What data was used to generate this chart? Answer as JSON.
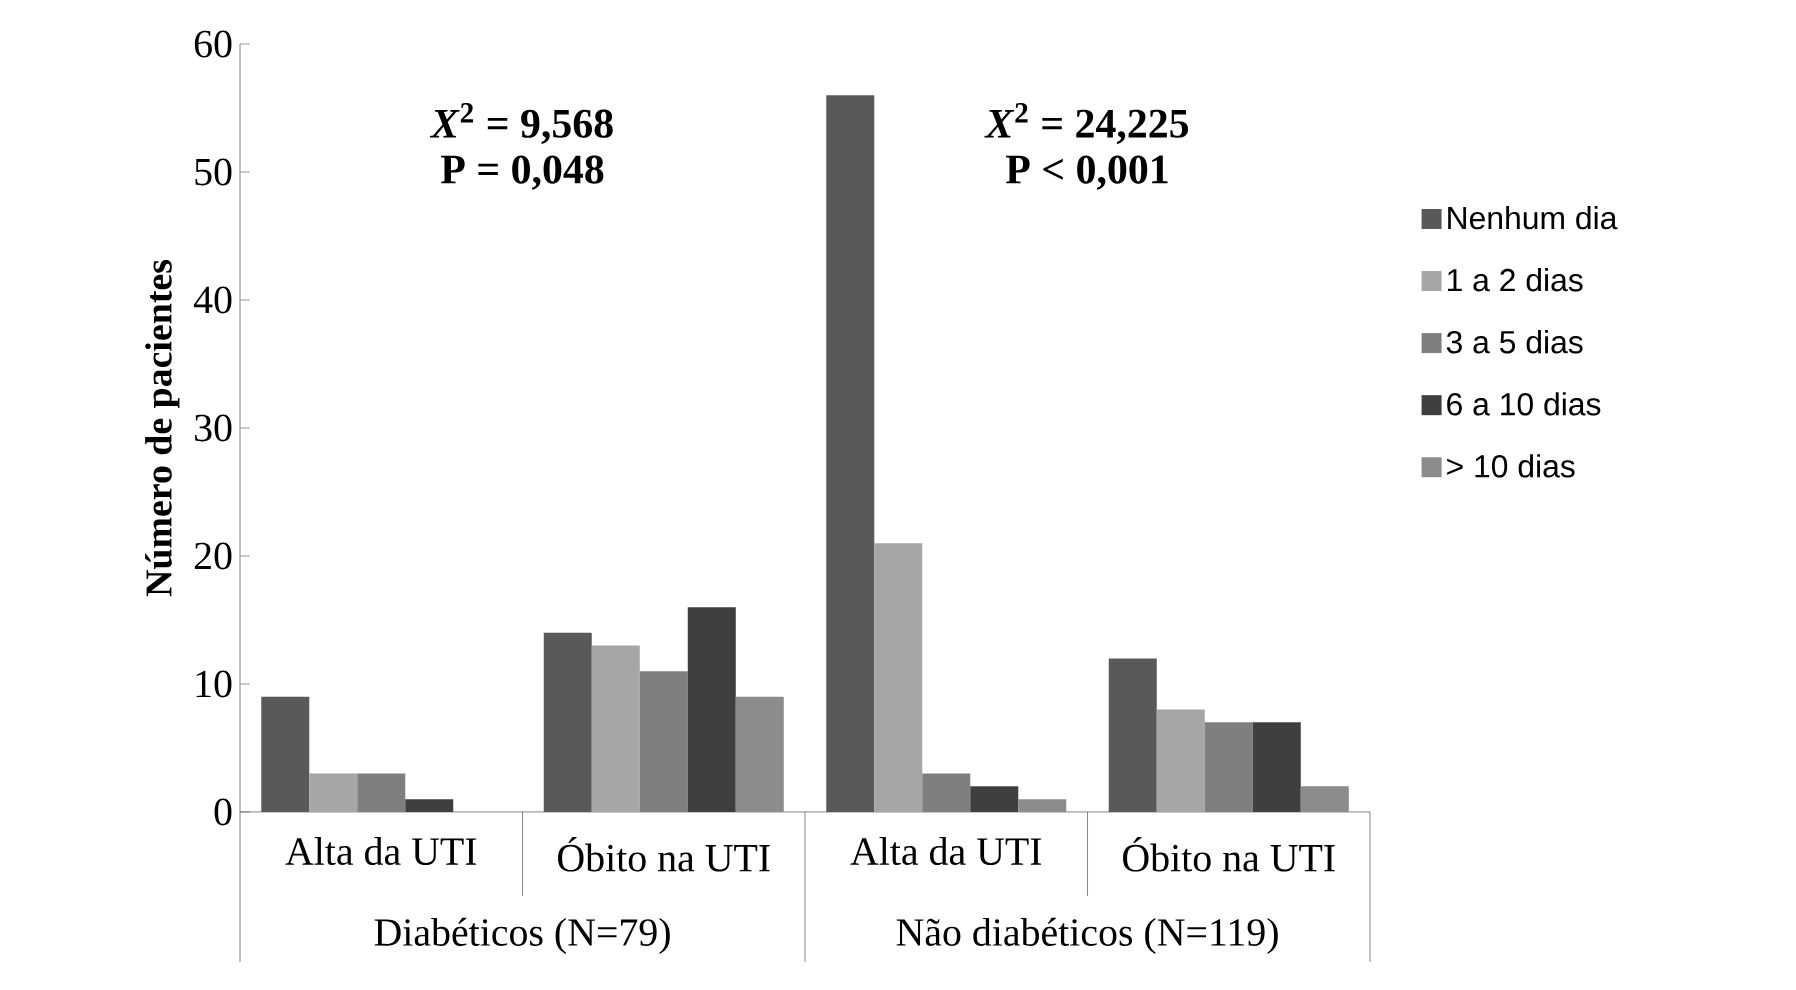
{
  "chart_data": {
    "type": "bar",
    "ylabel": "Número de pacientes",
    "categories": [
      "Alta da UTI",
      "Óbito na UTI",
      "Alta da UTI",
      "Óbito na UTI"
    ],
    "series": [
      {
        "name": "Nenhum dia",
        "color": "#595959",
        "values": [
          9,
          14,
          56,
          12
        ]
      },
      {
        "name": "1 a 2 dias",
        "color": "#a6a6a6",
        "values": [
          3,
          13,
          21,
          8
        ]
      },
      {
        "name": "3 a 5 dias",
        "color": "#7f7f7f",
        "values": [
          3,
          11,
          3,
          7
        ]
      },
      {
        "name": "6 a 10 dias",
        "color": "#3f3f3f",
        "values": [
          1,
          16,
          2,
          7
        ]
      },
      {
        "name": "> 10 dias",
        "color": "#8c8c8c",
        "values": [
          0,
          9,
          1,
          2
        ]
      }
    ],
    "ylim": [
      0,
      60
    ],
    "yticks": [
      0,
      10,
      20,
      30,
      40,
      50,
      60
    ],
    "grid": false,
    "legend": "right",
    "annotations": [
      "*X*$^{2}$ = 9,568",
      "P = 0,048",
      "*X*$^{2}$ = 24,225",
      "P < 0,001",
      "Diabéticos (N=79)",
      "Não diabéticos (N=119)"
    ]
  }
}
